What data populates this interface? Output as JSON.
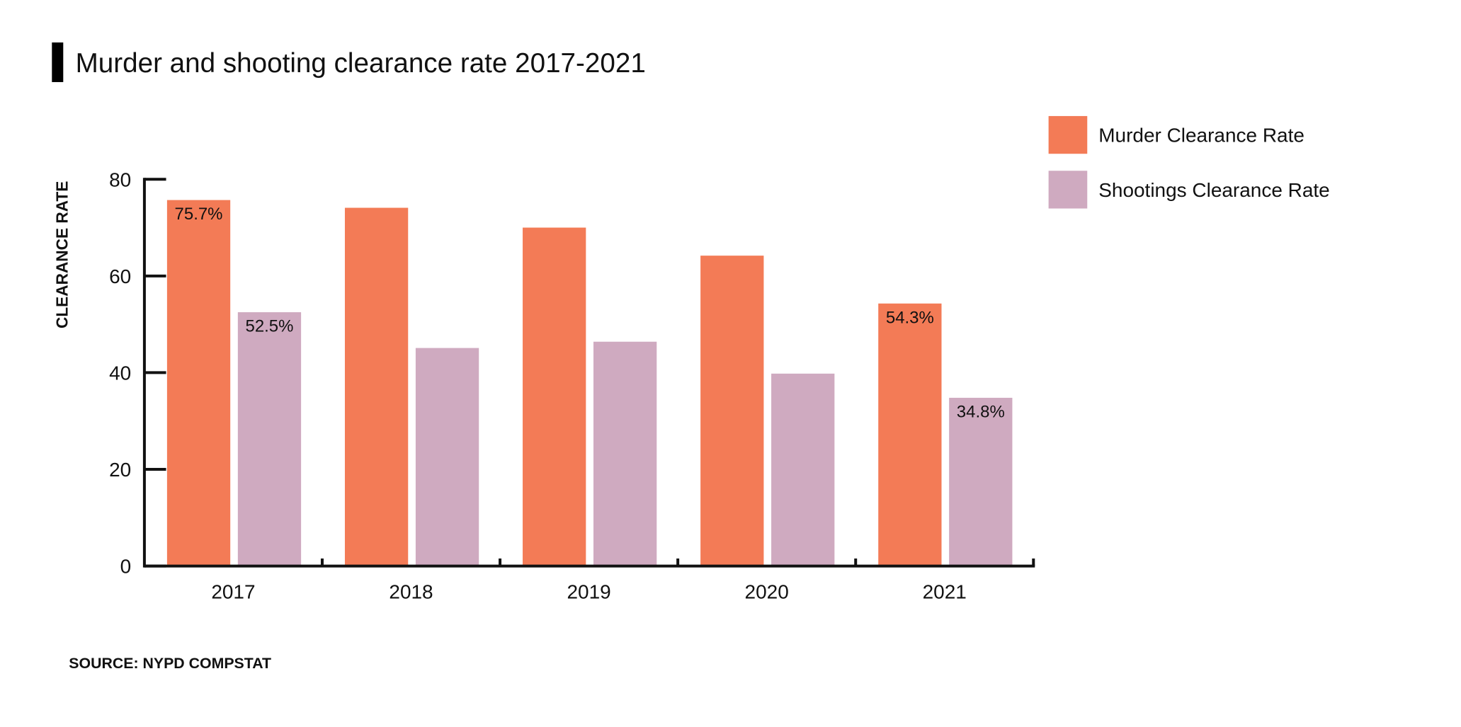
{
  "chart_data": {
    "type": "bar",
    "title": "Murder and shooting clearance rate 2017-2021",
    "y_label": "CLEARANCE RATE",
    "source": "SOURCE: NYPD COMPSTAT",
    "categories": [
      "2017",
      "2018",
      "2019",
      "2020",
      "2021"
    ],
    "series": [
      {
        "name": "Murder Clearance Rate",
        "color": "#f37b56",
        "values": [
          75.7,
          74.1,
          70.0,
          64.2,
          54.3
        ],
        "value_labels": [
          "75.7%",
          null,
          null,
          null,
          "54.3%"
        ]
      },
      {
        "name": "Shootings Clearance Rate",
        "color": "#cfaac0",
        "values": [
          52.5,
          45.1,
          46.4,
          39.8,
          34.8
        ],
        "value_labels": [
          "52.5%",
          null,
          null,
          null,
          "34.8%"
        ]
      }
    ],
    "ylim": [
      0,
      80
    ],
    "yticks": [
      0,
      20,
      40,
      60,
      80
    ],
    "legend": "top-right"
  }
}
